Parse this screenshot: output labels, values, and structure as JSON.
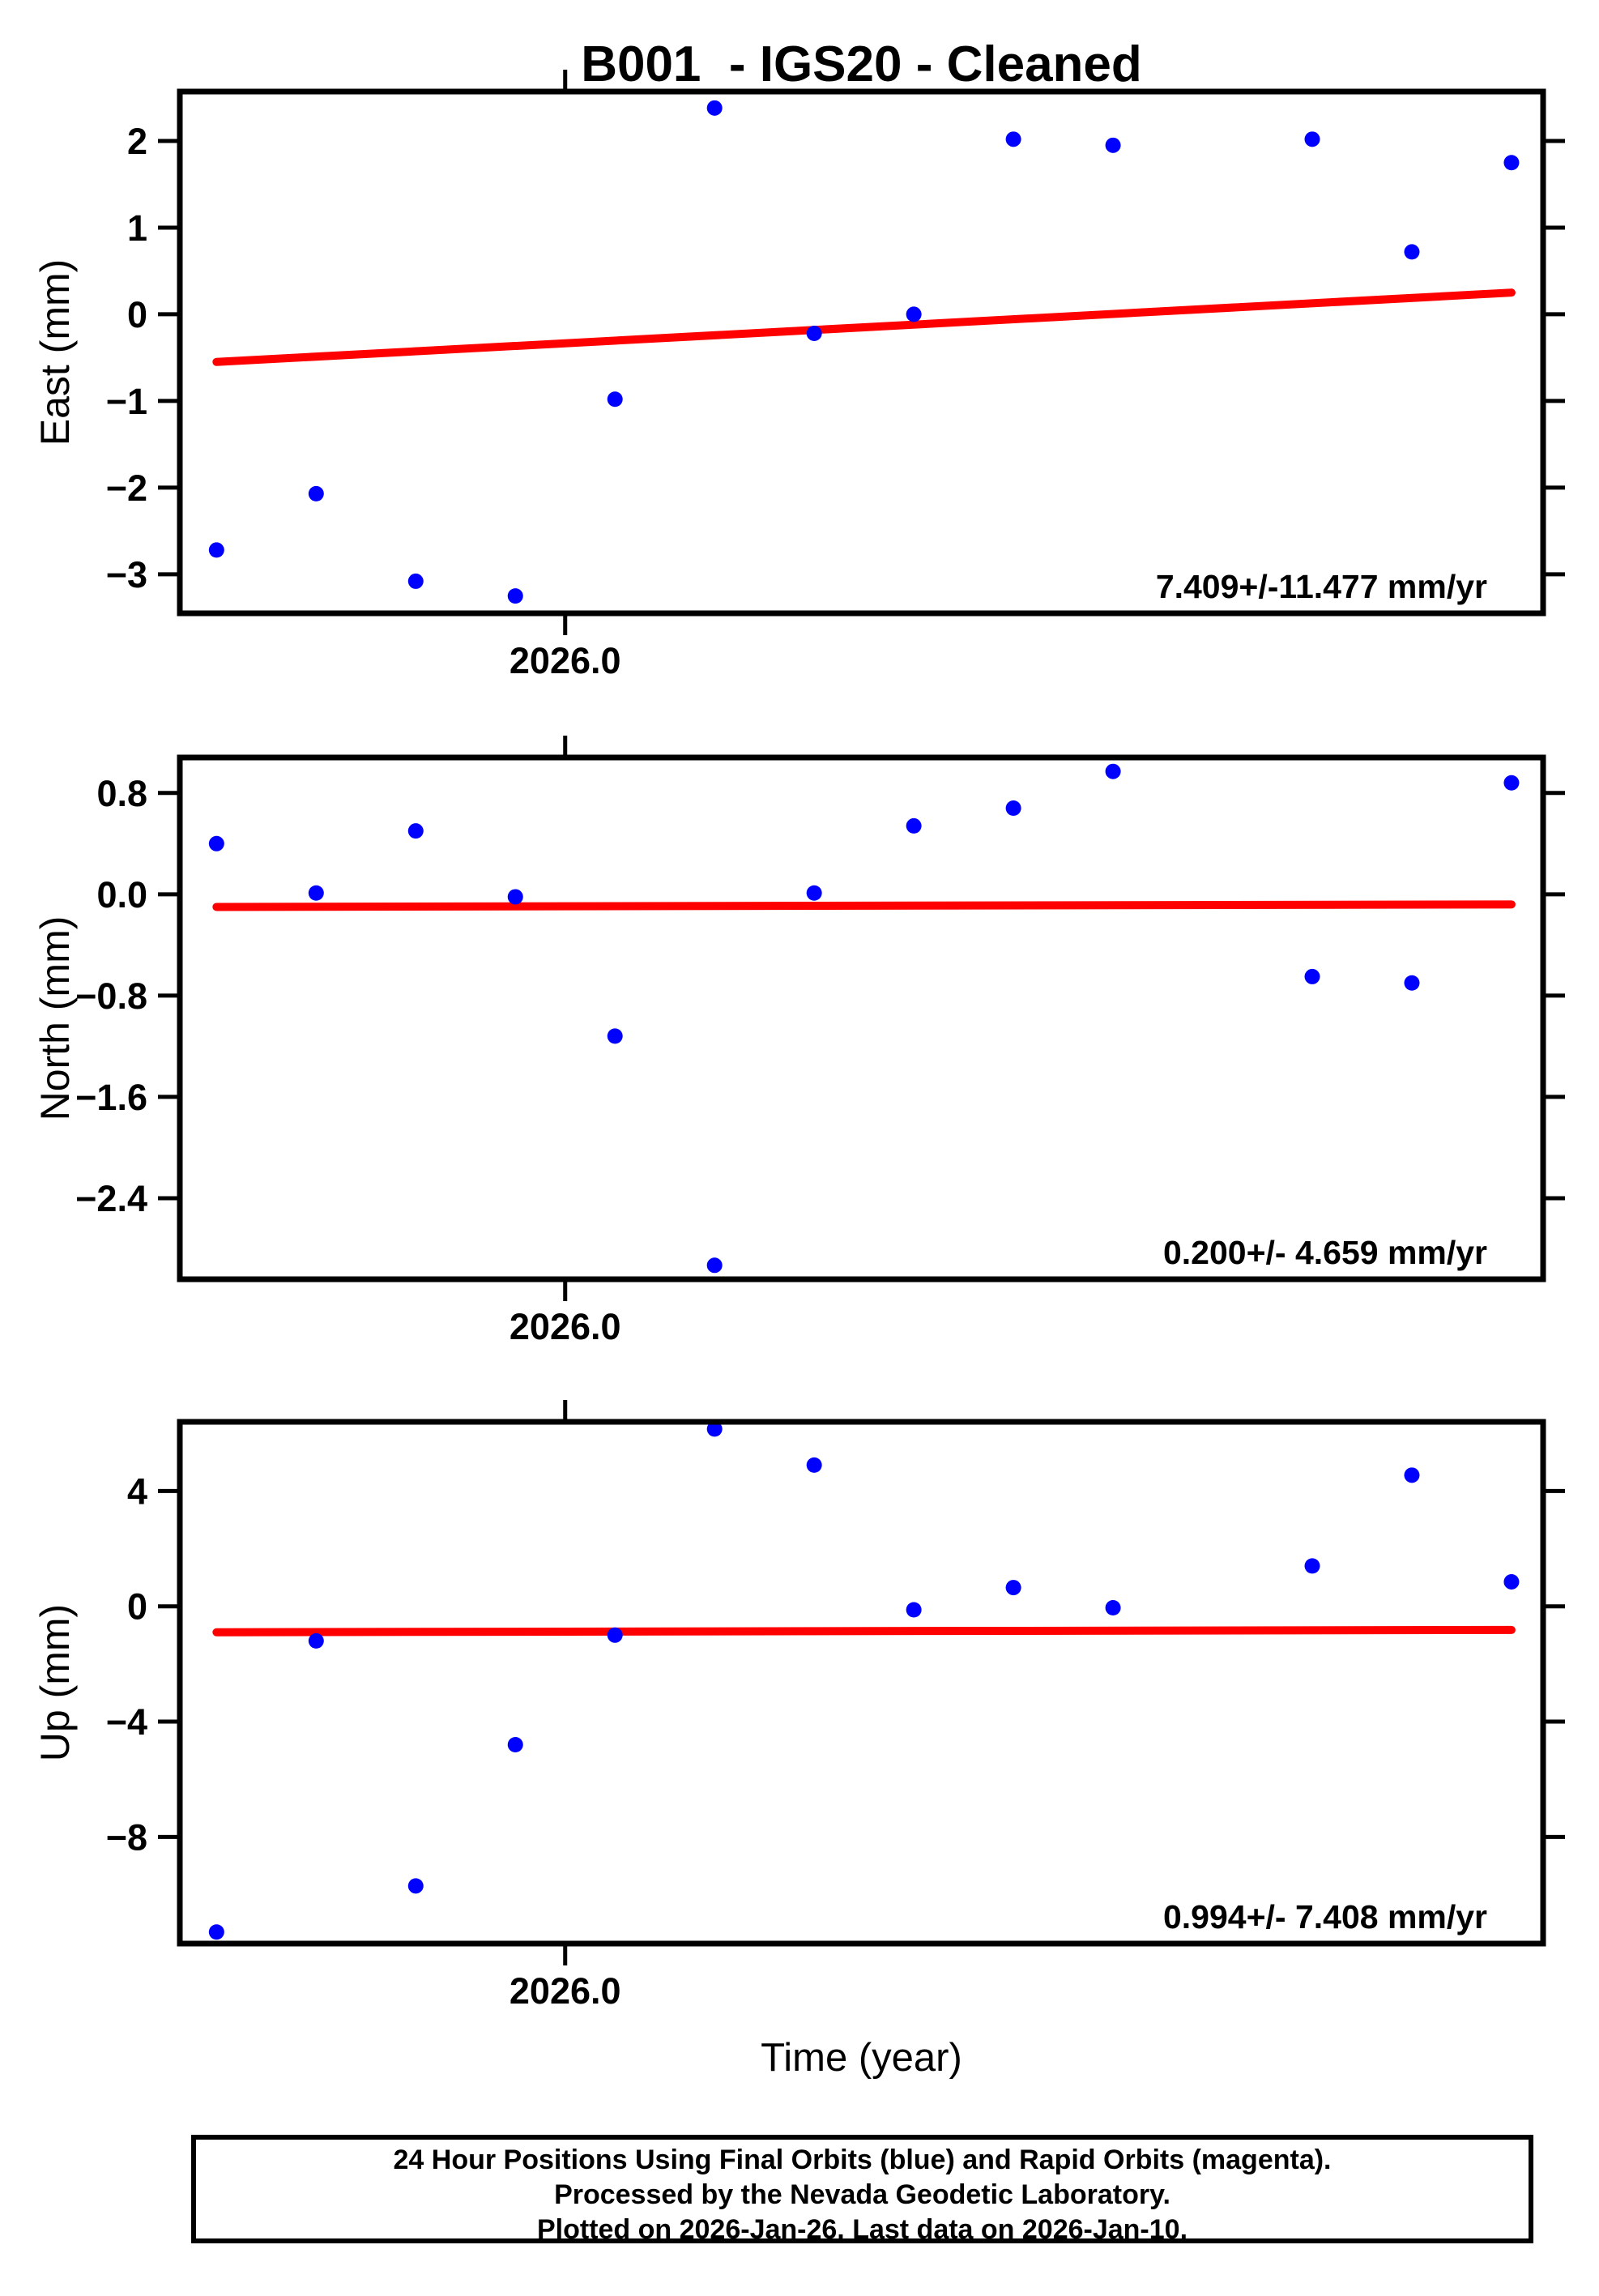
{
  "figure": {
    "title": "B001  - IGS20 - Cleaned",
    "xlabel": "Time (year)",
    "colors": {
      "points": "#0000ff",
      "trend": "#ff0000",
      "frame": "#000000"
    },
    "footer": {
      "line1": "24 Hour Positions Using Final Orbits (blue) and Rapid Orbits (magenta).",
      "line2": "Processed by the Nevada Geodetic Laboratory.",
      "line3": "Plotted on 2026-Jan-26. Last data on 2026-Jan-10."
    }
  },
  "chart_data": [
    {
      "type": "scatter",
      "ylabel": "East (mm)",
      "annotation": "7.409+/-11.477 mm/yr",
      "xlim": [
        2025.9894,
        2026.0269
      ],
      "ylim": [
        -3.45,
        2.57
      ],
      "xticks": [
        {
          "v": 2026.0,
          "label": "2026.0"
        }
      ],
      "yticks": [
        {
          "v": 2,
          "label": "2"
        },
        {
          "v": 1,
          "label": "1"
        },
        {
          "v": 0,
          "label": "0"
        },
        {
          "v": -1,
          "label": "−1"
        },
        {
          "v": -2,
          "label": "−2"
        },
        {
          "v": -3,
          "label": "−3"
        }
      ],
      "x": [
        2025.99041,
        2025.99315,
        2025.99589,
        2025.99863,
        2026.00137,
        2026.00411,
        2026.00685,
        2026.00959,
        2026.01233,
        2026.01507,
        2026.02055,
        2026.02329,
        2026.02603
      ],
      "y": [
        -2.72,
        -2.07,
        -3.08,
        -3.25,
        -0.98,
        2.38,
        -0.22,
        0.0,
        2.02,
        1.95,
        2.02,
        0.72,
        1.75
      ],
      "trend": {
        "x1": 2025.99041,
        "y1": -0.55,
        "x2": 2026.02603,
        "y2": 0.25
      }
    },
    {
      "type": "scatter",
      "ylabel": "North (mm)",
      "annotation": "0.200+/- 4.659 mm/yr",
      "xlim": [
        2025.9894,
        2026.0269
      ],
      "ylim": [
        -3.04,
        1.08
      ],
      "xticks": [
        {
          "v": 2026.0,
          "label": "2026.0"
        }
      ],
      "yticks": [
        {
          "v": 0.8,
          "label": "0.8"
        },
        {
          "v": 0.0,
          "label": "0.0"
        },
        {
          "v": -0.8,
          "label": "−0.8"
        },
        {
          "v": -1.6,
          "label": "−1.6"
        },
        {
          "v": -2.4,
          "label": "−2.4"
        }
      ],
      "x": [
        2025.99041,
        2025.99315,
        2025.99589,
        2025.99863,
        2026.00137,
        2026.00411,
        2026.00685,
        2026.00959,
        2026.01233,
        2026.01507,
        2026.02055,
        2026.02329,
        2026.02603
      ],
      "y": [
        0.4,
        0.01,
        0.5,
        -0.02,
        -1.12,
        -2.93,
        0.01,
        0.54,
        0.68,
        0.97,
        -0.65,
        -0.7,
        0.88
      ],
      "trend": {
        "x1": 2025.99041,
        "y1": -0.1,
        "x2": 2026.02603,
        "y2": -0.08
      }
    },
    {
      "type": "scatter",
      "ylabel": "Up (mm)",
      "annotation": "0.994+/- 7.408 mm/yr",
      "xlim": [
        2025.9894,
        2026.0269
      ],
      "ylim": [
        -11.7,
        6.4
      ],
      "xticks": [
        {
          "v": 2026.0,
          "label": "2026.0"
        }
      ],
      "yticks": [
        {
          "v": 4,
          "label": "4"
        },
        {
          "v": 0,
          "label": "0"
        },
        {
          "v": -4,
          "label": "−4"
        },
        {
          "v": -8,
          "label": "−8"
        }
      ],
      "x": [
        2025.99041,
        2025.99315,
        2025.99589,
        2025.99863,
        2026.00137,
        2026.00411,
        2026.00685,
        2026.00959,
        2026.01233,
        2026.01507,
        2026.02055,
        2026.02329,
        2026.02603
      ],
      "y": [
        -11.3,
        -1.2,
        -9.7,
        -4.8,
        -1.0,
        6.15,
        4.9,
        -0.12,
        0.65,
        -0.05,
        1.4,
        4.55,
        0.85
      ],
      "trend": {
        "x1": 2025.99041,
        "y1": -0.9,
        "x2": 2026.02603,
        "y2": -0.82
      }
    }
  ]
}
